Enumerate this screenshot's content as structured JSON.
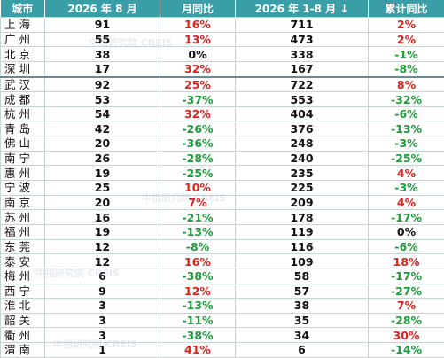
{
  "table": {
    "header": [
      "城市",
      "2026 年 8 月",
      "月同比",
      "2026 年 1-8 月 ↓",
      "累计同比"
    ],
    "rows": [
      [
        "上海",
        91,
        "16%",
        711,
        "2%"
      ],
      [
        "广州",
        55,
        "13%",
        473,
        "2%"
      ],
      [
        "北京",
        38,
        "0%",
        338,
        "-1%"
      ],
      [
        "深圳",
        17,
        "32%",
        167,
        "-8%"
      ],
      [
        "武汉",
        92,
        "25%",
        722,
        "8%"
      ],
      [
        "成都",
        53,
        "-37%",
        553,
        "-32%"
      ],
      [
        "杭州",
        54,
        "32%",
        404,
        "-6%"
      ],
      [
        "青岛",
        42,
        "-26%",
        376,
        "-13%"
      ],
      [
        "佛山",
        20,
        "-36%",
        248,
        "-3%"
      ],
      [
        "南宁",
        26,
        "-28%",
        240,
        "-25%"
      ],
      [
        "惠州",
        19,
        "-25%",
        235,
        "4%"
      ],
      [
        "宁波",
        25,
        "10%",
        225,
        "-3%"
      ],
      [
        "南京",
        20,
        "7%",
        209,
        "4%"
      ],
      [
        "苏州",
        16,
        "-21%",
        178,
        "-17%"
      ],
      [
        "福州",
        19,
        "-13%",
        119,
        "0%"
      ],
      [
        "东莞",
        12,
        "-8%",
        116,
        "-6%"
      ],
      [
        "泰安",
        12,
        "16%",
        109,
        "18%"
      ],
      [
        "梅州",
        6,
        "-38%",
        58,
        "-17%"
      ],
      [
        "西宁",
        9,
        "12%",
        57,
        "-27%"
      ],
      [
        "淮北",
        3,
        "-13%",
        38,
        "7%"
      ],
      [
        "韶关",
        3,
        "-11%",
        35,
        "-28%"
      ],
      [
        "衢州",
        3,
        "-38%",
        34,
        "30%"
      ],
      [
        "渭南",
        1,
        "41%",
        6,
        "-14%"
      ]
    ],
    "watermark": "中指研究院 CREIS"
  }
}
